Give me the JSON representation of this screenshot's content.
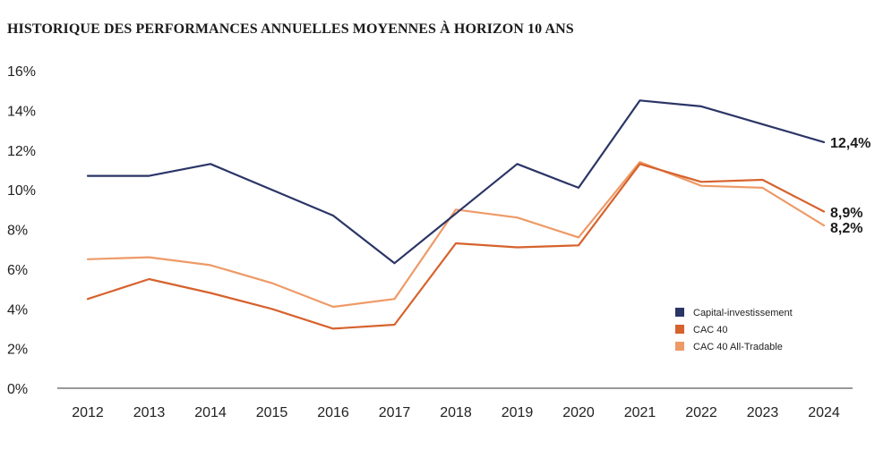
{
  "title": "HISTORIQUE DES PERFORMANCES ANNUELLES MOYENNES À HORIZON 10 ANS",
  "chart_data": {
    "type": "line",
    "title": "HISTORIQUE DES PERFORMANCES ANNUELLES MOYENNES À HORIZON 10 ANS",
    "x": [
      "2012",
      "2013",
      "2014",
      "2015",
      "2016",
      "2017",
      "2018",
      "2019",
      "2020",
      "2021",
      "2022",
      "2023",
      "2024"
    ],
    "ylim": [
      0,
      16
    ],
    "yticks": [
      "0%",
      "2%",
      "4%",
      "6%",
      "8%",
      "10%",
      "12%",
      "14%",
      "16%"
    ],
    "grid": false,
    "legend_position": "bottom-right",
    "series": [
      {
        "name": "Capital-investissement",
        "color": "#2b3566",
        "values": [
          10.7,
          10.7,
          11.3,
          10.0,
          8.7,
          6.3,
          8.8,
          11.3,
          10.1,
          14.5,
          14.2,
          13.3,
          12.4
        ],
        "end_label": "12,4%"
      },
      {
        "name": "CAC 40",
        "color": "#d6622d",
        "values": [
          4.5,
          5.5,
          4.8,
          4.0,
          3.0,
          3.2,
          7.3,
          7.1,
          7.2,
          11.3,
          10.4,
          10.5,
          8.9
        ],
        "end_label": "8,9%"
      },
      {
        "name": "CAC 40 All-Tradable",
        "color": "#ee9a67",
        "values": [
          6.5,
          6.6,
          6.2,
          5.3,
          4.1,
          4.5,
          9.0,
          8.6,
          7.6,
          11.4,
          10.2,
          10.1,
          8.2
        ],
        "end_label": "8,2%"
      }
    ]
  }
}
